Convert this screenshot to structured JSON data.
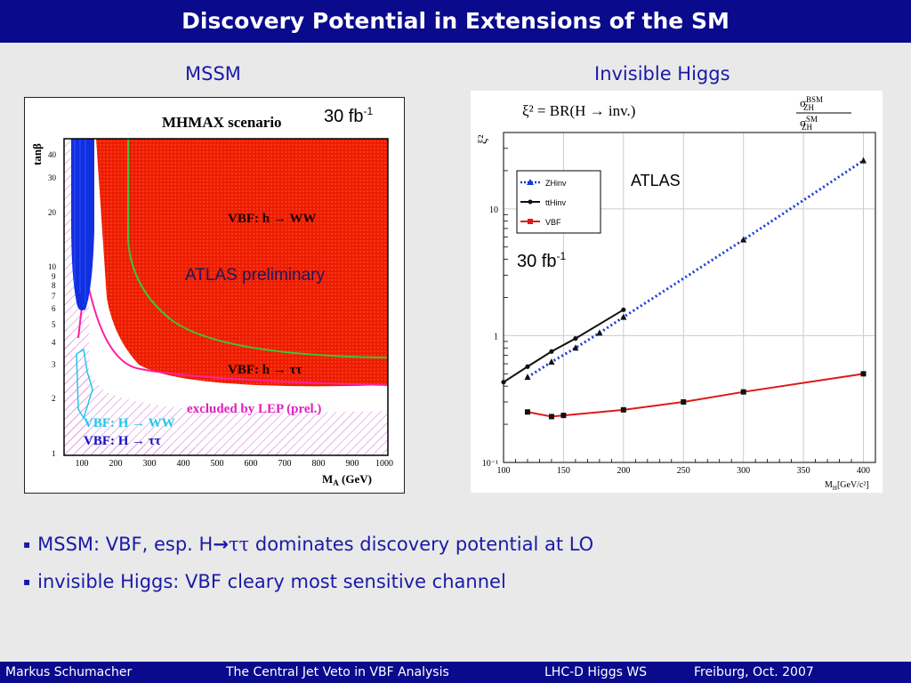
{
  "title": "Discovery Potential in Extensions of the SM",
  "headings": {
    "left": "MSSM",
    "right": "Invisible Higgs"
  },
  "left_plot": {
    "title": "MHMAX scenario",
    "lumi_value": "30 fb",
    "lumi_exp": "-1",
    "prelim": "ATLAS preliminary",
    "ylabel": "tanβ",
    "xlabel": "M",
    "xlabel_sub": "A",
    "xlabel_unit": " (GeV)",
    "xticks": [
      "100",
      "200",
      "300",
      "400",
      "500",
      "600",
      "700",
      "800",
      "900",
      "1000"
    ],
    "yticks": [
      "1",
      "2",
      "3",
      "4",
      "5",
      "6",
      "7",
      "8",
      "9",
      "10",
      "20",
      "30",
      "40"
    ],
    "labels": {
      "h_ww": "VBF: h → WW",
      "h_tautau": "VBF: h → ττ",
      "lep": "excluded by LEP (prel.)",
      "H_ww": "VBF: H → WW",
      "H_tautau": "VBF: H → ττ"
    },
    "colors": {
      "red": "#ee1c00",
      "blue": "#1030e0",
      "green": "#3cc43c",
      "magenta": "#ff20a0",
      "cyan": "#20c8e8",
      "lep_hatch": "#e080e0"
    }
  },
  "right_plot": {
    "formula_lhs": "ξ²  =  BR(H → inv.)",
    "formula_num": "σ",
    "formula_num_sup": "BSM",
    "formula_num_sub": "ZH",
    "formula_den": "σ",
    "formula_den_sup": "SM",
    "formula_den_sub": "ZH",
    "ylabel": "ξ²",
    "xlabel": "M",
    "xlabel_sub": "H",
    "xlabel_unit": "[GeV/c²]",
    "atlas": "ATLAS",
    "lumi_value": "30 fb",
    "lumi_exp": "-1"
  },
  "chart_data": {
    "type": "line",
    "title": "",
    "xlabel": "M_H [GeV/c²]",
    "ylabel": "ξ²",
    "xlim": [
      100,
      410
    ],
    "ylim": [
      0.1,
      40
    ],
    "yscale": "log",
    "xticks": [
      "100",
      "150",
      "200",
      "250",
      "300",
      "350",
      "400"
    ],
    "yticks": [
      "10⁻¹",
      "1",
      "10"
    ],
    "legend_position": "top-left",
    "series": [
      {
        "name": "ZHinv",
        "color": "#1a3ad8",
        "style": "dotted",
        "marker": "triangle",
        "x": [
          120,
          140,
          160,
          180,
          200,
          300,
          400
        ],
        "y": [
          0.47,
          0.62,
          0.8,
          1.05,
          1.4,
          5.7,
          24
        ]
      },
      {
        "name": "ttHinv",
        "color": "#111111",
        "style": "solid",
        "marker": "circle",
        "x": [
          100,
          120,
          140,
          160,
          200
        ],
        "y": [
          0.43,
          0.57,
          0.75,
          0.95,
          1.6
        ]
      },
      {
        "name": "VBF",
        "color": "#e01818",
        "style": "solid",
        "marker": "square",
        "x": [
          120,
          140,
          150,
          200,
          250,
          300,
          400
        ],
        "y": [
          0.25,
          0.23,
          0.235,
          0.26,
          0.3,
          0.36,
          0.5
        ]
      }
    ]
  },
  "bullets": [
    {
      "pre": "MSSM: VBF, esp. H",
      "arrow": "→",
      "tt": "ττ",
      "post": " dominates discovery potential at LO"
    },
    {
      "text": "invisible Higgs:  VBF cleary most sensitive channel"
    }
  ],
  "bullet_marker": "▪",
  "footer": {
    "author": "Markus  Schumacher",
    "talk": "The Central Jet Veto in VBF Analysis",
    "workshop": "LHC-D Higgs WS",
    "place": "Freiburg, Oct. 2007"
  }
}
